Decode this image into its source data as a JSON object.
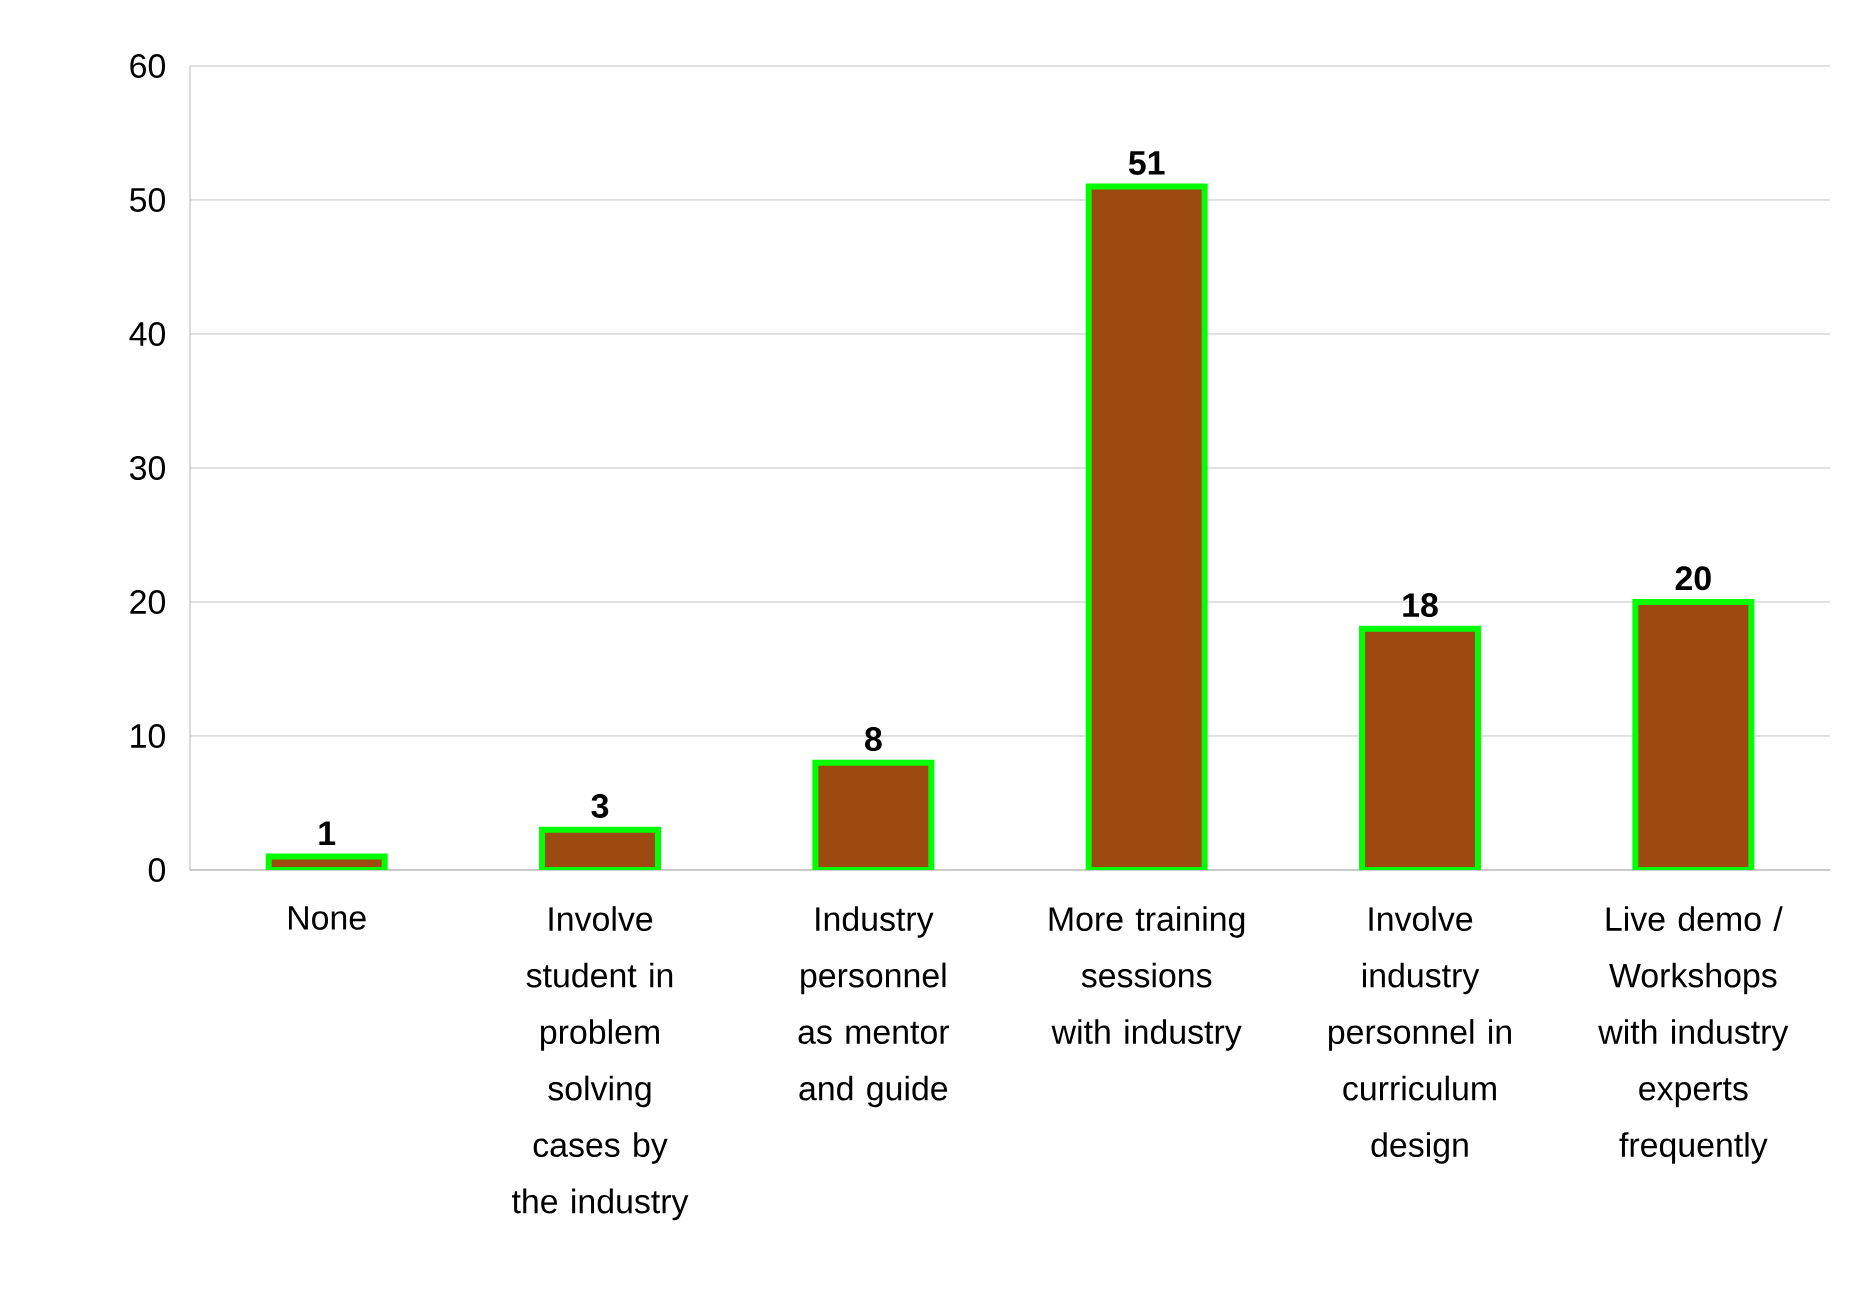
{
  "chart_data": {
    "type": "bar",
    "categories": [
      "None",
      "Involve student in problem solving cases by the industry",
      "Industry personnel as mentor and guide",
      "More training sessions with industry",
      "Involve industry personnel in curriculum design",
      "Live demo / Workshops with industry experts frequently"
    ],
    "values": [
      1,
      3,
      8,
      51,
      18,
      20
    ],
    "color": "#9c4a10",
    "ylim": [
      0,
      60
    ],
    "yticks": [
      0,
      10,
      20,
      30,
      40,
      50,
      60
    ],
    "grid": "y",
    "data_labels": true
  }
}
